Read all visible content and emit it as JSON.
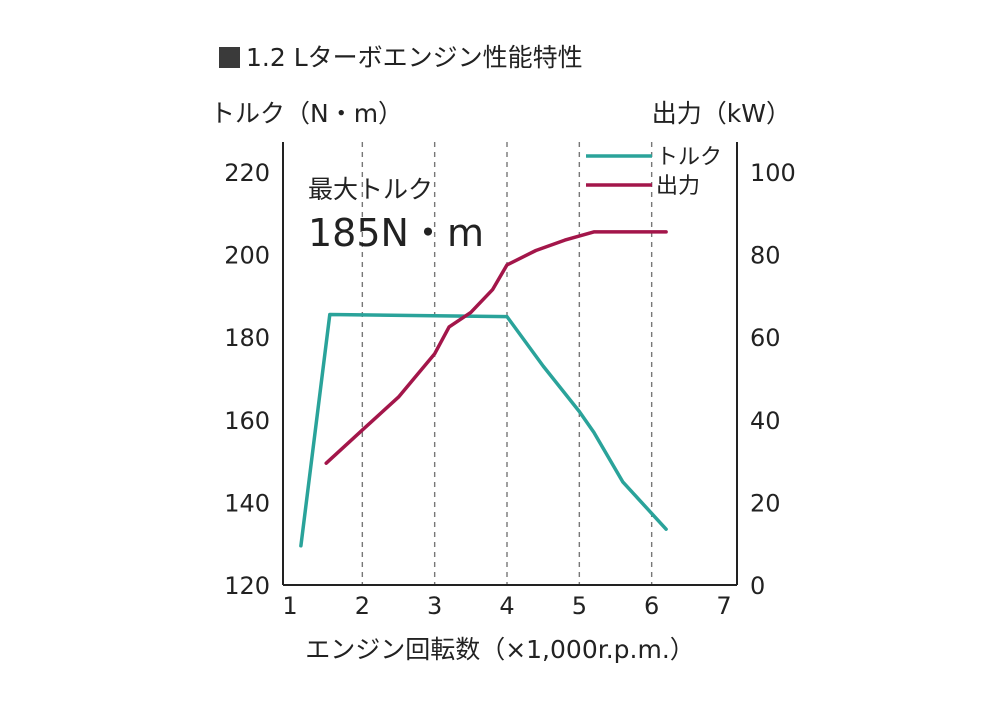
{
  "chart_data": {
    "type": "line",
    "title": "1.2 Lターボエンジン性能特性",
    "xlabel": "エンジン回転数（×1,000r.p.m.）",
    "ylabel_left": "トルク（N・m）",
    "ylabel_right": "出力（kW）",
    "xlim": [
      1,
      7
    ],
    "ylim_left": [
      120,
      220
    ],
    "ylim_right": [
      0,
      100
    ],
    "x_ticks": [
      "1",
      "2",
      "3",
      "4",
      "5",
      "6",
      "7"
    ],
    "y_left_ticks": [
      "120",
      "140",
      "160",
      "180",
      "200",
      "220"
    ],
    "y_right_ticks": [
      "0",
      "20",
      "40",
      "60",
      "80",
      "100"
    ],
    "grid_x": [
      2,
      3,
      4,
      5,
      6
    ],
    "legend": {
      "position": "top-right",
      "entries": [
        "トルク",
        "出力"
      ]
    },
    "annotation": {
      "line1": "最大トルク",
      "line2": "185N・m"
    },
    "series": [
      {
        "name": "トルク",
        "axis": "left",
        "color": "#2aa39a",
        "x": [
          1.15,
          1.55,
          4.0,
          4.5,
          5.0,
          5.2,
          5.6,
          6.2
        ],
        "y": [
          129.5,
          185.5,
          185,
          173,
          162,
          157,
          145,
          133.5
        ]
      },
      {
        "name": "出力",
        "axis": "right",
        "color": "#a3164a",
        "x": [
          1.5,
          2.0,
          2.5,
          3.0,
          3.2,
          3.5,
          3.8,
          4.0,
          4.4,
          4.8,
          5.2,
          5.6,
          6.2
        ],
        "y": [
          29.5,
          37.5,
          45.5,
          56,
          62.5,
          66,
          71.5,
          77.5,
          81,
          83.5,
          85.5,
          85.5,
          85.5
        ]
      }
    ]
  }
}
